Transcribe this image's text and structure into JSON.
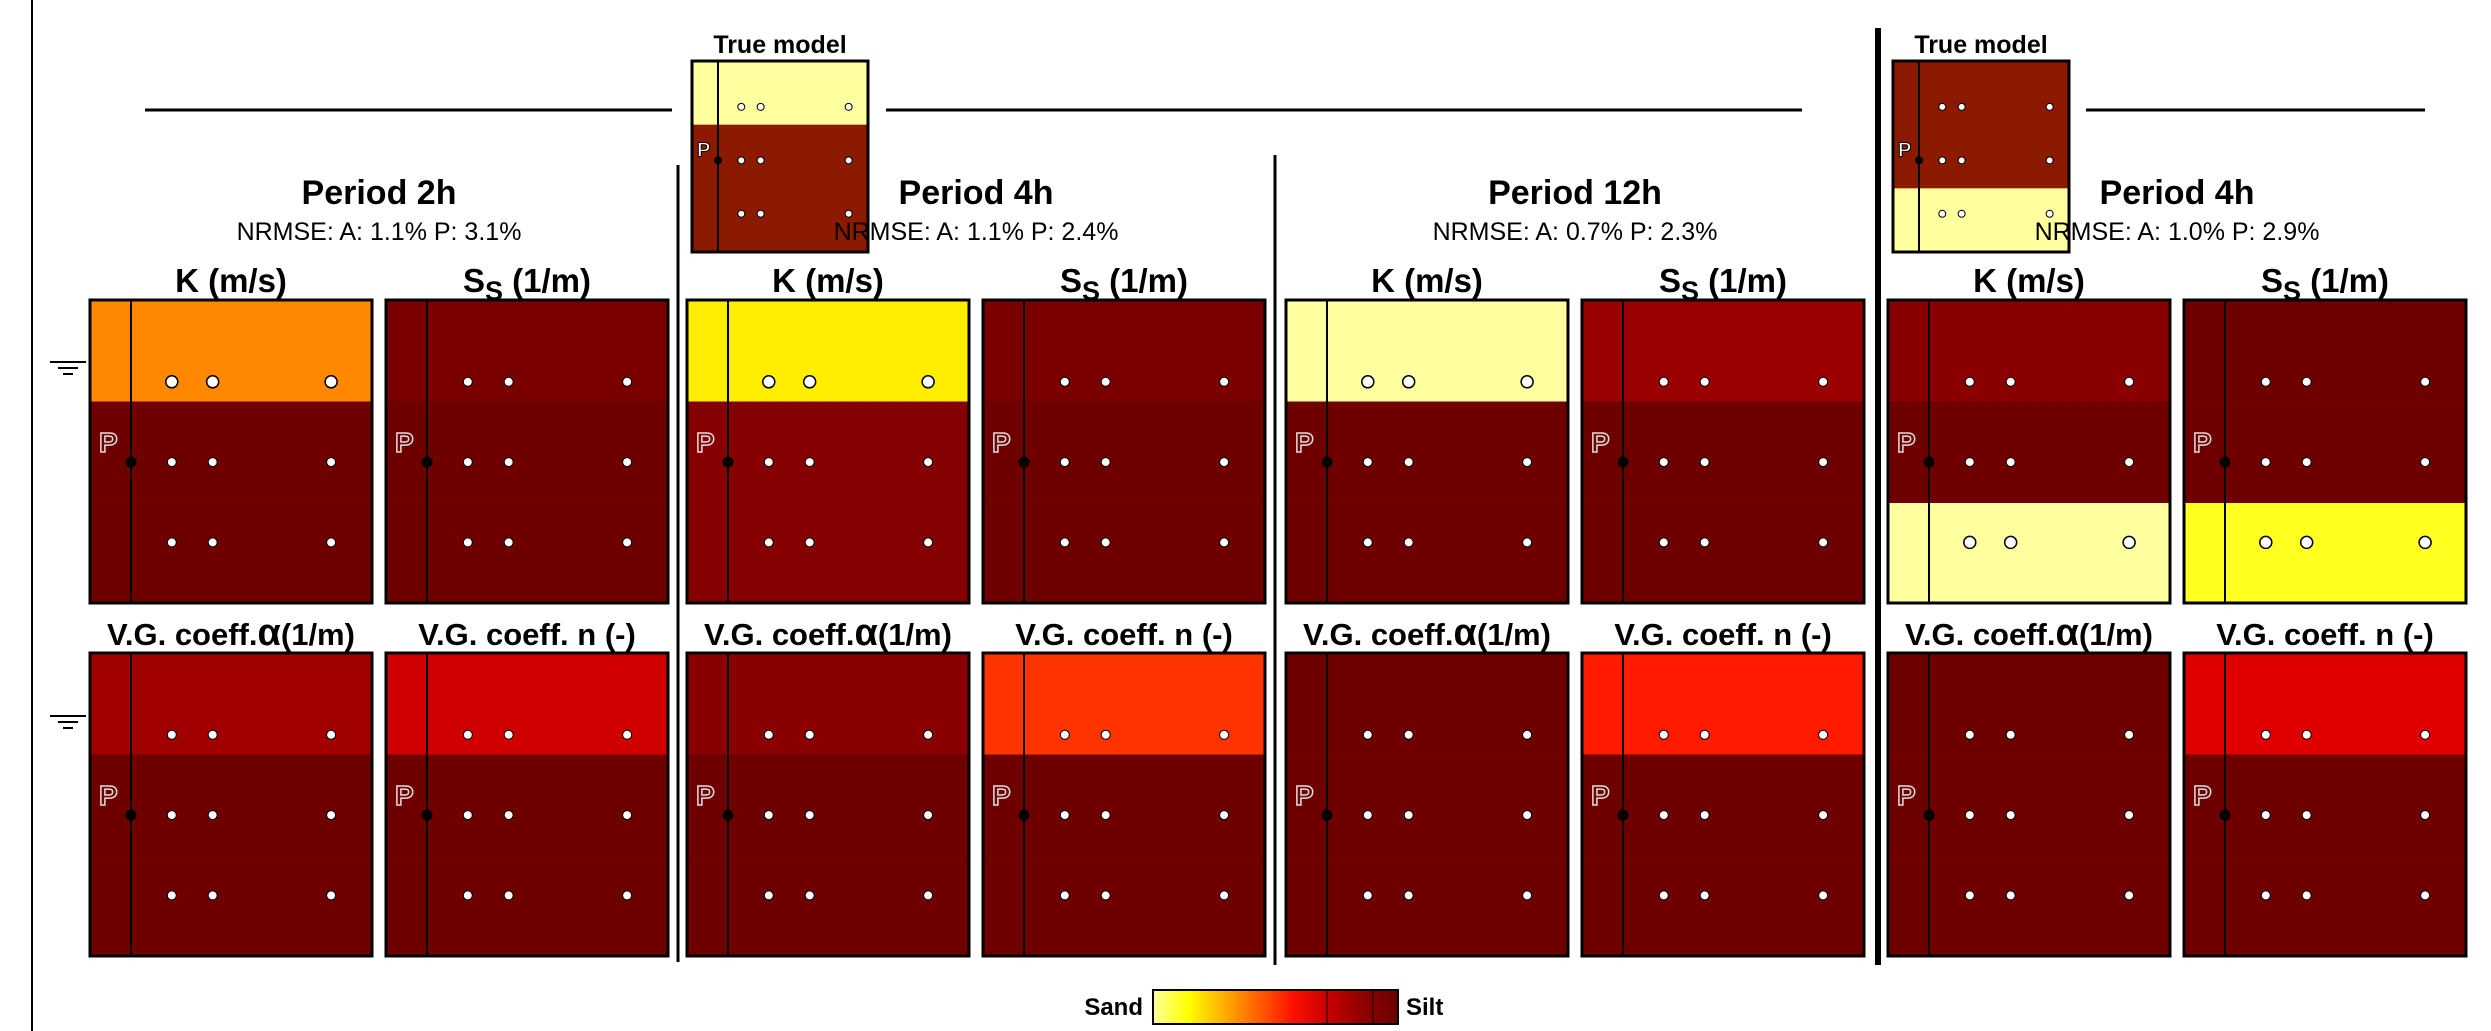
{
  "colors": {
    "sand": "#ffff00",
    "silt": "#6b0000",
    "deep": "#6e0000",
    "frame": "#000000",
    "obs_point_fill": "#ffffff",
    "colorbar_stops": [
      "#ffff9a",
      "#ffff00",
      "#ffb000",
      "#ff6000",
      "#ff1000",
      "#c80000",
      "#900000",
      "#6b0000"
    ]
  },
  "true_models": [
    {
      "label": "True model",
      "well_label": "P",
      "layers": [
        "#ffffa0",
        "#8c1a00",
        "#8c1a00"
      ]
    },
    {
      "label": "True model",
      "well_label": "P",
      "layers": [
        "#8c1a00",
        "#8c1a00",
        "#ffffa0"
      ]
    }
  ],
  "periods": [
    {
      "title": "Period 2h",
      "nrmse": "NRMSE: A: 1.1% P: 3.1%"
    },
    {
      "title": "Period 4h",
      "nrmse": "NRMSE: A: 1.1% P: 2.4%"
    },
    {
      "title": "Period 12h",
      "nrmse": "NRMSE: A: 0.7% P: 2.3%"
    },
    {
      "title": "Period 4h",
      "nrmse": "NRMSE: A: 1.0% P: 2.9%"
    }
  ],
  "param_labels": {
    "k": "K (m/s)",
    "ss_main": "S",
    "ss_sub": "S",
    "ss_unit": " (1/m)",
    "alpha_prefix": "V.G. coeff.",
    "alpha_symbol": "α",
    "alpha_unit": "(1/m)",
    "n": "V.G. coeff. n (-)"
  },
  "panels": [
    {
      "p": 0,
      "param": "k",
      "layers": [
        "#ff8800",
        "#6e0000",
        "#6e0000"
      ],
      "big_dots": true
    },
    {
      "p": 0,
      "param": "ss",
      "layers": [
        "#7a0000",
        "#6e0000",
        "#6e0000"
      ],
      "big_dots": false
    },
    {
      "p": 0,
      "param": "alpha",
      "layers": [
        "#a00000",
        "#6e0000",
        "#6e0000"
      ],
      "big_dots": false
    },
    {
      "p": 0,
      "param": "n",
      "layers": [
        "#d00000",
        "#6e0000",
        "#6e0000"
      ],
      "big_dots": false
    },
    {
      "p": 1,
      "param": "k",
      "layers": [
        "#ffee00",
        "#850000",
        "#850000"
      ],
      "big_dots": true
    },
    {
      "p": 1,
      "param": "ss",
      "layers": [
        "#7a0000",
        "#6e0000",
        "#6e0000"
      ],
      "big_dots": false
    },
    {
      "p": 1,
      "param": "alpha",
      "layers": [
        "#8a0000",
        "#6e0000",
        "#6e0000"
      ],
      "big_dots": false
    },
    {
      "p": 1,
      "param": "n",
      "layers": [
        "#ff3300",
        "#6e0000",
        "#6e0000"
      ],
      "big_dots": false
    },
    {
      "p": 2,
      "param": "k",
      "layers": [
        "#ffffa0",
        "#6e0000",
        "#6e0000"
      ],
      "big_dots": true
    },
    {
      "p": 2,
      "param": "ss",
      "layers": [
        "#9a0000",
        "#6e0000",
        "#6e0000"
      ],
      "big_dots": false
    },
    {
      "p": 2,
      "param": "alpha",
      "layers": [
        "#6e0000",
        "#6e0000",
        "#6e0000"
      ],
      "big_dots": false
    },
    {
      "p": 2,
      "param": "n",
      "layers": [
        "#ff1a00",
        "#6e0000",
        "#6e0000"
      ],
      "big_dots": false
    },
    {
      "p": 3,
      "param": "k",
      "layers": [
        "#8a0000",
        "#6e0000",
        "#ffffa0"
      ],
      "big_dots": false
    },
    {
      "p": 3,
      "param": "ss",
      "layers": [
        "#6e0000",
        "#6e0000",
        "#ffff20"
      ],
      "big_dots": false
    },
    {
      "p": 3,
      "param": "alpha",
      "layers": [
        "#6e0000",
        "#6e0000",
        "#6e0000"
      ],
      "big_dots": false
    },
    {
      "p": 3,
      "param": "n",
      "layers": [
        "#e00000",
        "#6e0000",
        "#6e0000"
      ],
      "big_dots": false
    }
  ],
  "panel_well_label": "P",
  "colorbar": {
    "left_label": "Sand",
    "right_label": "Silt"
  }
}
